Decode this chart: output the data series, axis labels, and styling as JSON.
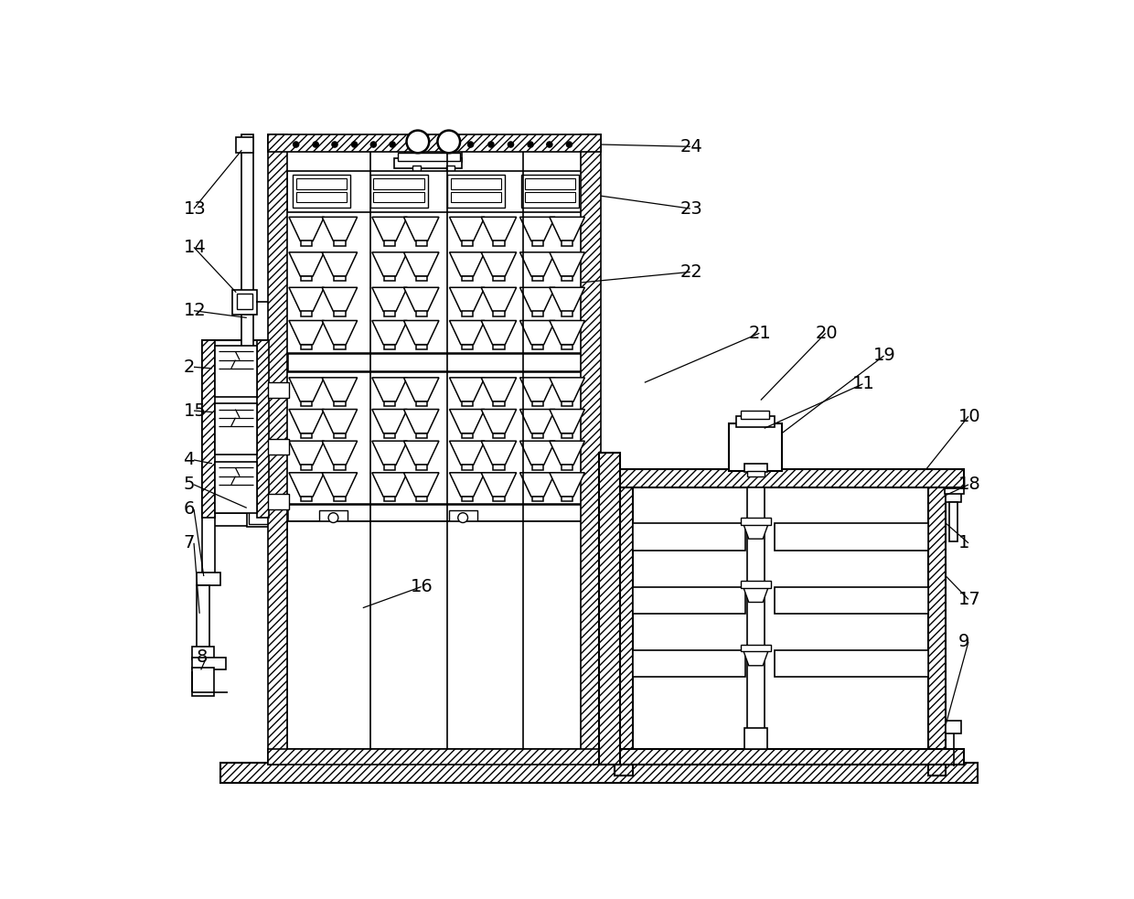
{
  "bg": "#ffffff",
  "lc": "#000000",
  "fig_w": 12.4,
  "fig_h": 9.83,
  "dpi": 100
}
